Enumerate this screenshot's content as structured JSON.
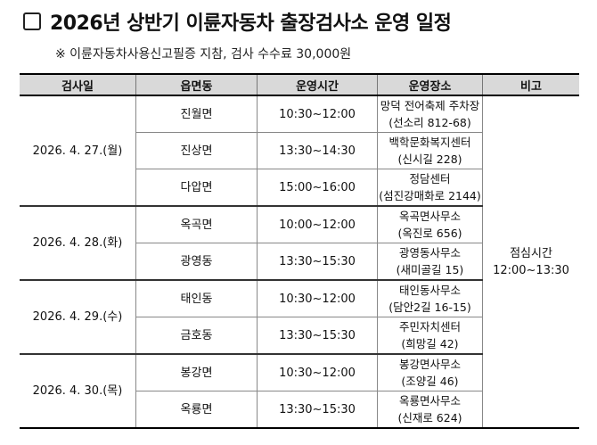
{
  "title": "2026년 상반기 이륜자동차 출장검사소 운영 일정",
  "note": "※ 이륜자동차사용신고필증 지참, 검사 수수료 30,000원",
  "headers": [
    "검사일",
    "읍면동",
    "운영시간",
    "운영장소",
    "비고"
  ],
  "remark": [
    "점심시간",
    "12:00~13:30"
  ],
  "groups": [
    {
      "date": "2026. 4. 27.(월)",
      "rows": [
        {
          "town": "진월면",
          "time": "10:30~12:00",
          "place1": "망덕 전어축제 주차장",
          "place2": "(선소리 812-68)"
        },
        {
          "town": "진상면",
          "time": "13:30~14:30",
          "place1": "백학문화복지센터",
          "place2": "(신시길 228)"
        },
        {
          "town": "다압면",
          "time": "15:00~16:00",
          "place1": "정담센터",
          "place2": "(섬진강매화로 2144)"
        }
      ]
    },
    {
      "date": "2026. 4. 28.(화)",
      "rows": [
        {
          "town": "옥곡면",
          "time": "10:00~12:00",
          "place1": "옥곡면사무소",
          "place2": "(옥진로 656)"
        },
        {
          "town": "광영동",
          "time": "13:30~15:30",
          "place1": "광영동사무소",
          "place2": "(새미골길 15)"
        }
      ]
    },
    {
      "date": "2026. 4. 29.(수)",
      "rows": [
        {
          "town": "태인동",
          "time": "10:30~12:00",
          "place1": "태인동사무소",
          "place2": "(담안2길 16-15)"
        },
        {
          "town": "금호동",
          "time": "13:30~15:30",
          "place1": "주민자치센터",
          "place2": "(희망길 42)"
        }
      ]
    },
    {
      "date": "2026. 4. 30.(목)",
      "rows": [
        {
          "town": "봉강면",
          "time": "10:30~12:00",
          "place1": "봉강면사무소",
          "place2": "(조양길 46)"
        },
        {
          "town": "옥룡면",
          "time": "13:30~15:30",
          "place1": "옥룡면사무소",
          "place2": "(신재로 624)"
        }
      ]
    }
  ]
}
